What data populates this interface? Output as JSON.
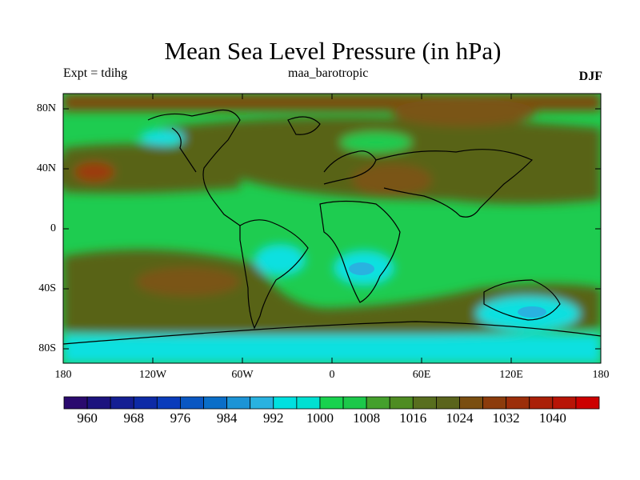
{
  "title": "Mean Sea Level Pressure (in hPa)",
  "subtitle_left": "Expt = tdihg",
  "subtitle_center": "maa_barotropic",
  "subtitle_right": "DJF",
  "lat_labels": [
    "80N",
    "40N",
    "0",
    "40S",
    "80S"
  ],
  "lon_labels": [
    "180",
    "120W",
    "60W",
    "0",
    "60E",
    "120E",
    "180"
  ],
  "colorbar": {
    "colors": [
      "#2a0a6e",
      "#1c137e",
      "#141e93",
      "#0d2aa6",
      "#0a3cbb",
      "#0a57c2",
      "#0a6ec8",
      "#1c94d6",
      "#29b2e0",
      "#00e0e0",
      "#00e0d2",
      "#18d24e",
      "#1cc84a",
      "#44a02c",
      "#4e8c22",
      "#586e1e",
      "#5a641c",
      "#7a4e10",
      "#8c3c0c",
      "#9c2e0a",
      "#aa2008",
      "#b81406",
      "#cc0000"
    ],
    "labels": [
      "960",
      "968",
      "976",
      "984",
      "992",
      "1000",
      "1008",
      "1016",
      "1024",
      "1032",
      "1040"
    ]
  },
  "field_colors": {
    "high_1028": "#9c3a0c",
    "high_1020": "#7a5412",
    "moderate_1016": "#596418",
    "mid_1012": "#4e8c22",
    "normal_1008": "#1ecc50",
    "low_996": "#10e0e0",
    "low_992": "#29b2e0",
    "coast": "#000000"
  }
}
